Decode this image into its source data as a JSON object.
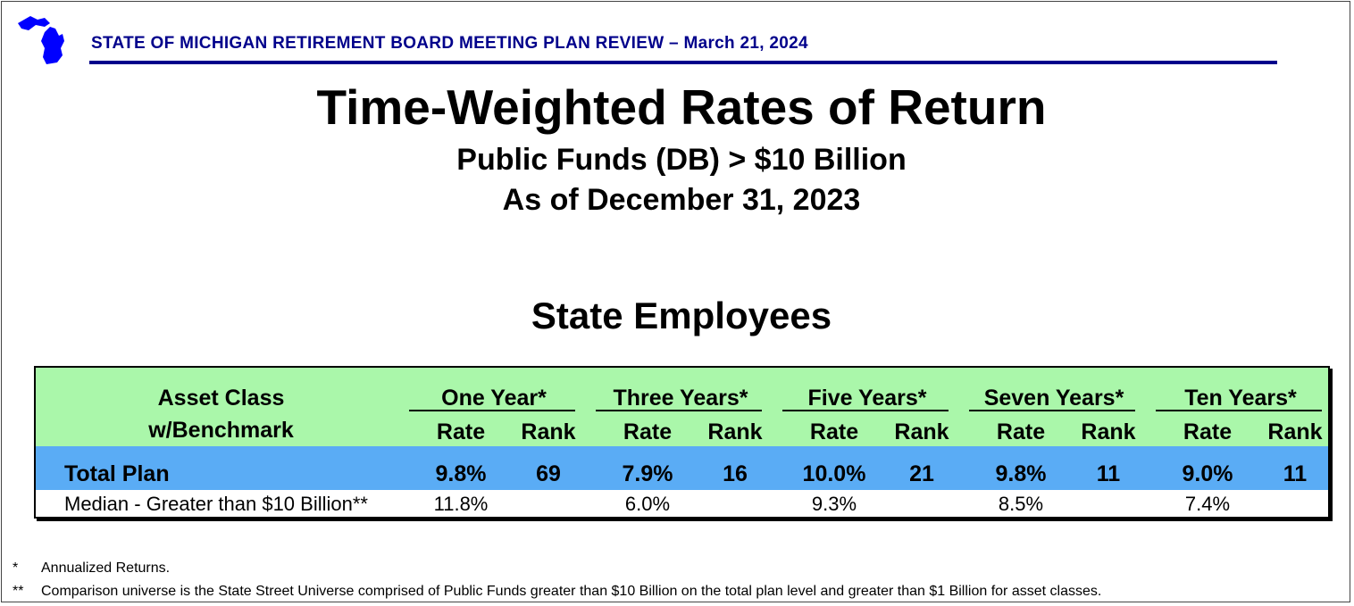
{
  "header": {
    "title": "STATE OF MICHIGAN RETIREMENT BOARD MEETING PLAN REVIEW – March 21, 2024",
    "brand_color": "#00008b",
    "logo_icon": "michigan-map-icon"
  },
  "title": "Time-Weighted Rates of Return",
  "subtitle1": "Public Funds (DB) > $10 Billion",
  "subtitle2": "As of December 31, 2023",
  "section": "State Employees",
  "table": {
    "asset_class_header_line1": "Asset Class",
    "asset_class_header_line2": "w/Benchmark",
    "periods": [
      {
        "label": "One Year*",
        "rate_label": "Rate",
        "rank_label": "Rank"
      },
      {
        "label": "Three Years*",
        "rate_label": "Rate",
        "rank_label": "Rank"
      },
      {
        "label": "Five Years*",
        "rate_label": "Rate",
        "rank_label": "Rank"
      },
      {
        "label": "Seven Years*",
        "rate_label": "Rate",
        "rank_label": "Rank"
      },
      {
        "label": "Ten Years*",
        "rate_label": "Rate",
        "rank_label": "Rank"
      }
    ],
    "rows": [
      {
        "label": "Total Plan",
        "values": [
          {
            "rate": "9.8%",
            "rank": "69"
          },
          {
            "rate": "7.9%",
            "rank": "16"
          },
          {
            "rate": "10.0%",
            "rank": "21"
          },
          {
            "rate": "9.8%",
            "rank": "11"
          },
          {
            "rate": "9.0%",
            "rank": "11"
          }
        ]
      },
      {
        "label": "Median - Greater than $10 Billion**",
        "values": [
          {
            "rate": "11.8%"
          },
          {
            "rate": "6.0%"
          },
          {
            "rate": "9.3%"
          },
          {
            "rate": "8.5%"
          },
          {
            "rate": "7.4%"
          }
        ]
      }
    ],
    "colors": {
      "header_bg": "#aaf7aa",
      "total_bg": "#5aacf5"
    }
  },
  "footnotes": [
    {
      "mark": "*",
      "text": "Annualized Returns."
    },
    {
      "mark": "**",
      "text": "Comparison universe is the State Street Universe comprised of Public Funds greater than $10 Billion on the total plan level and greater than $1 Billion for asset classes."
    }
  ]
}
